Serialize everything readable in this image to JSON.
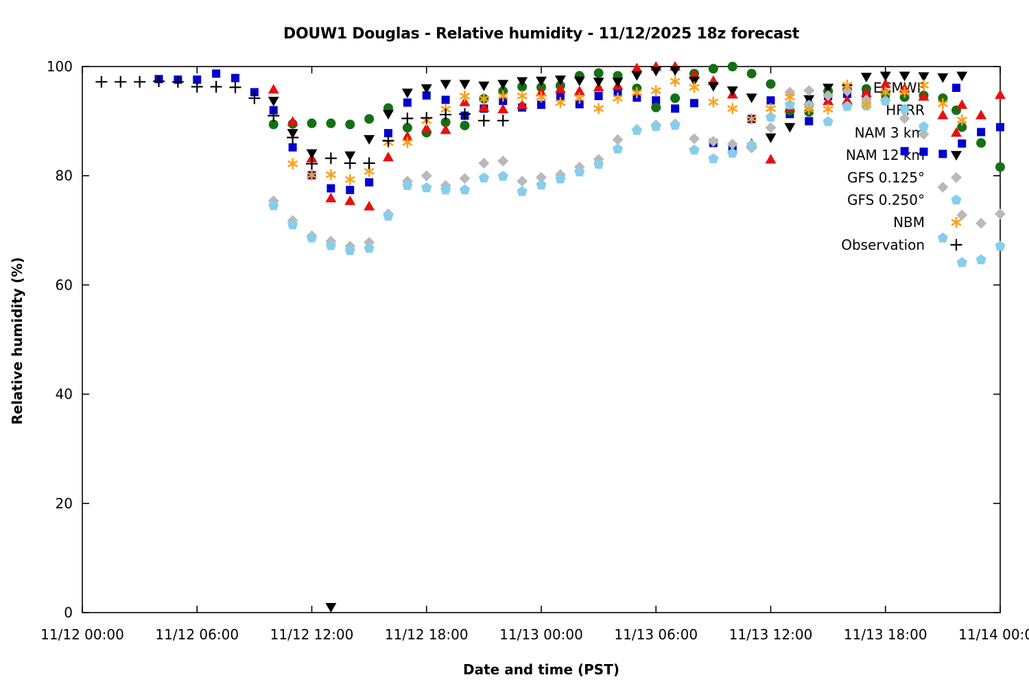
{
  "chart": {
    "title": "DOUW1 Douglas - Relative humidity - 11/12/2025 18z forecast",
    "xlabel": "Date and time (PST)",
    "ylabel": "Relative humidity (%)"
  },
  "chart_data": {
    "type": "scatter",
    "title": "DOUW1 Douglas - Relative humidity - 11/12/2025 18z forecast",
    "xlabel": "Date and time (PST)",
    "ylabel": "Relative humidity (%)",
    "x_unit": "hours_since_11/12_00:00_PST",
    "xlim": [
      0,
      48
    ],
    "ylim": [
      0,
      100
    ],
    "grid": false,
    "legend_position": "top-right-inside",
    "x_ticks": [
      {
        "t": 0,
        "label": "11/12 00:00"
      },
      {
        "t": 6,
        "label": "11/12 06:00"
      },
      {
        "t": 12,
        "label": "11/12 12:00"
      },
      {
        "t": 18,
        "label": "11/12 18:00"
      },
      {
        "t": 24,
        "label": "11/13 00:00"
      },
      {
        "t": 30,
        "label": "11/13 06:00"
      },
      {
        "t": 36,
        "label": "11/13 12:00"
      },
      {
        "t": 42,
        "label": "11/13 18:00"
      },
      {
        "t": 48,
        "label": "11/14 00:00"
      }
    ],
    "y_ticks": [
      0,
      20,
      40,
      60,
      80,
      100
    ],
    "series": [
      {
        "name": "ECMWF",
        "marker": "square",
        "color": "#0000cd",
        "points": [
          [
            4,
            97.7
          ],
          [
            5,
            97.6
          ],
          [
            6,
            97.6
          ],
          [
            7,
            98.7
          ],
          [
            8,
            97.9
          ],
          [
            9,
            95.3
          ],
          [
            10,
            92.0
          ],
          [
            11,
            85.2
          ],
          [
            12,
            80.1
          ],
          [
            13,
            77.7
          ],
          [
            14,
            77.4
          ],
          [
            15,
            78.8
          ],
          [
            16,
            87.8
          ],
          [
            17,
            93.4
          ],
          [
            18,
            94.7
          ],
          [
            19,
            93.9
          ],
          [
            20,
            91.0
          ],
          [
            21,
            92.3
          ],
          [
            22,
            93.7
          ],
          [
            23,
            92.5
          ],
          [
            24,
            93.0
          ],
          [
            25,
            94.6
          ],
          [
            26,
            93.1
          ],
          [
            27,
            94.6
          ],
          [
            28,
            95.4
          ],
          [
            29,
            94.3
          ],
          [
            30,
            93.8
          ],
          [
            31,
            92.3
          ],
          [
            32,
            93.3
          ],
          [
            33,
            86.0
          ],
          [
            34,
            84.9
          ],
          [
            35,
            90.4
          ],
          [
            36,
            93.8
          ],
          [
            37,
            91.3
          ],
          [
            38,
            90.0
          ],
          [
            39,
            94.6
          ],
          [
            40,
            95.0
          ],
          [
            41,
            94.7
          ],
          [
            42,
            94.9
          ],
          [
            43,
            84.5
          ],
          [
            44,
            84.4
          ],
          [
            45,
            84.0
          ],
          [
            46,
            85.9
          ],
          [
            47,
            88.0
          ],
          [
            48,
            88.9
          ]
        ]
      },
      {
        "name": "HRRR",
        "marker": "circle",
        "color": "#157015",
        "points": [
          [
            10,
            89.4
          ],
          [
            11,
            89.5
          ],
          [
            12,
            89.6
          ],
          [
            13,
            89.6
          ],
          [
            14,
            89.4
          ],
          [
            15,
            90.4
          ],
          [
            16,
            92.4
          ],
          [
            17,
            88.8
          ],
          [
            18,
            87.9
          ],
          [
            19,
            89.8
          ],
          [
            20,
            89.2
          ],
          [
            21,
            94.1
          ],
          [
            22,
            95.5
          ],
          [
            23,
            96.3
          ],
          [
            24,
            96.2
          ],
          [
            25,
            96.5
          ],
          [
            26,
            98.3
          ],
          [
            27,
            98.8
          ],
          [
            28,
            98.3
          ],
          [
            29,
            96.0
          ],
          [
            30,
            92.5
          ],
          [
            31,
            94.2
          ],
          [
            32,
            98.7
          ],
          [
            33,
            99.6
          ],
          [
            34,
            100
          ],
          [
            35,
            98.7
          ],
          [
            36,
            96.8
          ],
          [
            37,
            91.9
          ],
          [
            38,
            91.7
          ],
          [
            39,
            95.5
          ],
          [
            40,
            95.9
          ],
          [
            41,
            95.9
          ],
          [
            42,
            95.0
          ],
          [
            43,
            94.4
          ],
          [
            44,
            94.7
          ],
          [
            45,
            94.2
          ],
          [
            46,
            88.9
          ],
          [
            47,
            86.0
          ],
          [
            48,
            81.6
          ]
        ]
      },
      {
        "name": "NAM 3 km",
        "marker": "triangle-up",
        "color": "#e8100e",
        "points": [
          [
            10,
            95.8
          ],
          [
            11,
            89.9
          ],
          [
            12,
            83.2
          ],
          [
            13,
            75.9
          ],
          [
            14,
            75.4
          ],
          [
            15,
            74.4
          ],
          [
            16,
            83.4
          ],
          [
            17,
            87.2
          ],
          [
            18,
            88.7
          ],
          [
            19,
            88.4
          ],
          [
            20,
            93.5
          ],
          [
            21,
            92.5
          ],
          [
            22,
            92.2
          ],
          [
            23,
            93.0
          ],
          [
            24,
            95.3
          ],
          [
            25,
            95.9
          ],
          [
            26,
            95.5
          ],
          [
            27,
            96.2
          ],
          [
            28,
            96.5
          ],
          [
            29,
            99.7
          ],
          [
            30,
            100
          ],
          [
            31,
            100
          ],
          [
            32,
            98.5
          ],
          [
            33,
            97.4
          ],
          [
            34,
            94.9
          ],
          [
            35,
            85.9
          ],
          [
            36,
            83.0
          ],
          [
            37,
            92.4
          ],
          [
            38,
            93.7
          ],
          [
            39,
            93.7
          ],
          [
            40,
            93.8
          ],
          [
            41,
            95.2
          ],
          [
            42,
            96.8
          ],
          [
            43,
            96.0
          ],
          [
            44,
            94.5
          ],
          [
            45,
            91.1
          ],
          [
            46,
            93.0
          ],
          [
            47,
            91.1
          ],
          [
            48,
            94.8
          ]
        ]
      },
      {
        "name": "NAM 12 km",
        "marker": "triangle-down",
        "color": "#000000",
        "points": [
          [
            10,
            93.7
          ],
          [
            11,
            87.8
          ],
          [
            12,
            84.1
          ],
          [
            13,
            1.0
          ],
          [
            14,
            83.7
          ],
          [
            15,
            86.7
          ],
          [
            16,
            91.3
          ],
          [
            17,
            95.2
          ],
          [
            18,
            96.0
          ],
          [
            19,
            96.8
          ],
          [
            20,
            96.8
          ],
          [
            21,
            96.5
          ],
          [
            22,
            96.8
          ],
          [
            23,
            97.3
          ],
          [
            24,
            97.4
          ],
          [
            25,
            97.6
          ],
          [
            26,
            97.4
          ],
          [
            27,
            97.2
          ],
          [
            28,
            97.2
          ],
          [
            29,
            98.4
          ],
          [
            30,
            99.2
          ],
          [
            31,
            99.3
          ],
          [
            32,
            97.4
          ],
          [
            33,
            96.4
          ],
          [
            34,
            95.6
          ],
          [
            35,
            94.3
          ],
          [
            36,
            87.0
          ],
          [
            37,
            88.9
          ],
          [
            38,
            94.0
          ],
          [
            39,
            96.1
          ],
          [
            40,
            96.0
          ],
          [
            41,
            98.1
          ],
          [
            42,
            98.3
          ],
          [
            43,
            98.3
          ],
          [
            44,
            98.2
          ],
          [
            45,
            98.0
          ],
          [
            46,
            98.3
          ]
        ]
      },
      {
        "name": "GFS 0.125°",
        "marker": "diamond",
        "color": "#b9b9b9",
        "points": [
          [
            10,
            75.4
          ],
          [
            11,
            71.8
          ],
          [
            12,
            69.0
          ],
          [
            13,
            68.0
          ],
          [
            14,
            67.1
          ],
          [
            15,
            67.8
          ],
          [
            16,
            73.0
          ],
          [
            17,
            79.0
          ],
          [
            18,
            80.0
          ],
          [
            19,
            78.2
          ],
          [
            20,
            79.5
          ],
          [
            21,
            82.3
          ],
          [
            22,
            82.7
          ],
          [
            23,
            79.0
          ],
          [
            24,
            79.7
          ],
          [
            25,
            80.2
          ],
          [
            26,
            81.6
          ],
          [
            27,
            83.0
          ],
          [
            28,
            86.6
          ],
          [
            29,
            88.5
          ],
          [
            30,
            89.3
          ],
          [
            31,
            89.5
          ],
          [
            32,
            86.8
          ],
          [
            33,
            86.3
          ],
          [
            34,
            85.8
          ],
          [
            35,
            85.1
          ],
          [
            36,
            88.8
          ],
          [
            37,
            95.3
          ],
          [
            38,
            95.6
          ],
          [
            39,
            94.7
          ],
          [
            40,
            95.5
          ],
          [
            41,
            93.9
          ],
          [
            42,
            93.8
          ],
          [
            43,
            90.5
          ],
          [
            44,
            87.6
          ],
          [
            45,
            77.9
          ],
          [
            46,
            72.8
          ],
          [
            47,
            71.3
          ],
          [
            48,
            73.0
          ]
        ]
      },
      {
        "name": "GFS 0.250°",
        "marker": "pentagon",
        "color": "#87ceeb",
        "points": [
          [
            10,
            74.5
          ],
          [
            11,
            71.0
          ],
          [
            12,
            68.6
          ],
          [
            13,
            67.2
          ],
          [
            14,
            66.3
          ],
          [
            15,
            66.7
          ],
          [
            16,
            72.6
          ],
          [
            17,
            78.2
          ],
          [
            18,
            77.8
          ],
          [
            19,
            77.4
          ],
          [
            20,
            77.4
          ],
          [
            21,
            79.6
          ],
          [
            22,
            79.9
          ],
          [
            23,
            77.1
          ],
          [
            24,
            78.3
          ],
          [
            25,
            79.4
          ],
          [
            26,
            80.7
          ],
          [
            27,
            82.1
          ],
          [
            28,
            84.9
          ],
          [
            29,
            88.3
          ],
          [
            30,
            89.0
          ],
          [
            31,
            89.2
          ],
          [
            32,
            84.7
          ],
          [
            33,
            83.1
          ],
          [
            34,
            84.1
          ],
          [
            35,
            85.6
          ],
          [
            36,
            90.7
          ],
          [
            37,
            93.0
          ],
          [
            38,
            92.9
          ],
          [
            39,
            89.9
          ],
          [
            40,
            92.7
          ],
          [
            41,
            92.8
          ],
          [
            42,
            93.7
          ],
          [
            43,
            92.2
          ],
          [
            44,
            89.0
          ],
          [
            45,
            68.6
          ],
          [
            46,
            64.1
          ],
          [
            47,
            64.6
          ],
          [
            48,
            67.1
          ]
        ]
      },
      {
        "name": "NBM",
        "marker": "asterisk",
        "color": "#ffa018",
        "points": [
          [
            11,
            82.2
          ],
          [
            12,
            80.1
          ],
          [
            13,
            80.2
          ],
          [
            14,
            79.3
          ],
          [
            15,
            80.8
          ],
          [
            16,
            86.1
          ],
          [
            17,
            86.1
          ],
          [
            18,
            90.1
          ],
          [
            19,
            92.2
          ],
          [
            20,
            94.6
          ],
          [
            21,
            94.1
          ],
          [
            22,
            94.6
          ],
          [
            23,
            94.6
          ],
          [
            24,
            94.4
          ],
          [
            25,
            93.4
          ],
          [
            26,
            94.2
          ],
          [
            27,
            92.3
          ],
          [
            28,
            94.2
          ],
          [
            29,
            95.2
          ],
          [
            30,
            95.6
          ],
          [
            31,
            97.3
          ],
          [
            32,
            96.2
          ],
          [
            33,
            93.5
          ],
          [
            34,
            92.3
          ],
          [
            35,
            90.4
          ],
          [
            36,
            92.3
          ],
          [
            37,
            94.4
          ],
          [
            38,
            92.2
          ],
          [
            39,
            92.2
          ],
          [
            40,
            96.6
          ],
          [
            41,
            93.0
          ],
          [
            42,
            95.3
          ],
          [
            43,
            95.3
          ],
          [
            44,
            96.6
          ],
          [
            45,
            93.2
          ],
          [
            46,
            90.2
          ]
        ]
      },
      {
        "name": "Observation",
        "marker": "plus",
        "color": "#000000",
        "points": [
          [
            1,
            97.2
          ],
          [
            2,
            97.2
          ],
          [
            3,
            97.2
          ],
          [
            4,
            97.3
          ],
          [
            5,
            97.2
          ],
          [
            6,
            96.3
          ],
          [
            7,
            96.3
          ],
          [
            8,
            96.2
          ],
          [
            9,
            94.2
          ],
          [
            10,
            91.0
          ],
          [
            11,
            87.0
          ],
          [
            12,
            82.2
          ],
          [
            13,
            83.2
          ],
          [
            14,
            82.3
          ],
          [
            15,
            82.3
          ],
          [
            16,
            86.4
          ],
          [
            17,
            90.5
          ],
          [
            18,
            90.6
          ],
          [
            19,
            91.2
          ],
          [
            20,
            91.3
          ],
          [
            21,
            90.1
          ],
          [
            22,
            90.1
          ]
        ]
      }
    ]
  }
}
